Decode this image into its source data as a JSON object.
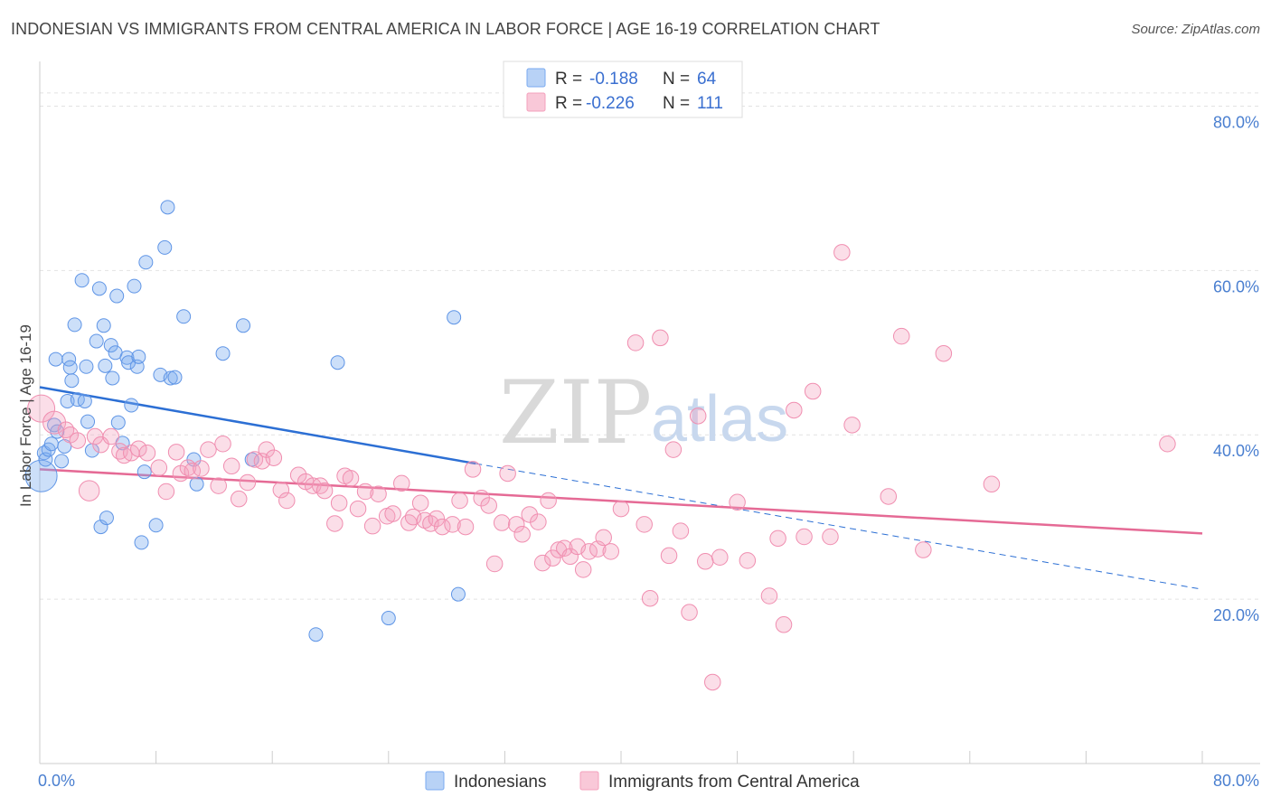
{
  "header": {
    "title": "INDONESIAN VS IMMIGRANTS FROM CENTRAL AMERICA IN LABOR FORCE | AGE 16-19 CORRELATION CHART",
    "source": "Source: ZipAtlas.com"
  },
  "watermark": {
    "zip": "ZIP",
    "atlas": "atlas"
  },
  "chart_data": {
    "type": "scatter",
    "title": "INDONESIAN VS IMMIGRANTS FROM CENTRAL AMERICA IN LABOR FORCE | AGE 16-19 CORRELATION CHART",
    "ylabel": "In Labor Force | Age 16-19",
    "xlabel": "",
    "xlim": [
      0,
      80
    ],
    "ylim": [
      0,
      85
    ],
    "x_tick_labels": [
      "0.0%",
      "80.0%"
    ],
    "y_ticks": [
      20,
      40,
      60,
      80
    ],
    "y_tick_labels": [
      "20.0%",
      "40.0%",
      "60.0%",
      "80.0%"
    ],
    "grid": true,
    "legend_position": "top-center",
    "colors": {
      "indonesians": "#7aaaf0",
      "central_america": "#f4a0bc",
      "indonesians_line": "#2c6fd4",
      "central_america_line": "#e56a95"
    },
    "stats": [
      {
        "r_label": "R =",
        "r": "-0.188",
        "n_label": "N =",
        "n": "64"
      },
      {
        "r_label": "R =",
        "r": "-0.226",
        "n_label": "N =",
        "n": "111"
      }
    ],
    "series": [
      {
        "name": "Indonesians",
        "trend": {
          "x": [
            0,
            30
          ],
          "y": [
            45.8,
            36.5
          ],
          "dashed_to": {
            "x": 80,
            "y": 21.2
          }
        },
        "points": [
          [
            0.1,
            35,
            14
          ],
          [
            0.3,
            37.8,
            6
          ],
          [
            0.4,
            37,
            6
          ],
          [
            0.6,
            38.2,
            6
          ],
          [
            0.8,
            38.9,
            6
          ],
          [
            1.0,
            41.2,
            6
          ],
          [
            1.1,
            49.2,
            6
          ],
          [
            1.2,
            40.4,
            6
          ],
          [
            1.5,
            36.8,
            6
          ],
          [
            1.7,
            38.6,
            6
          ],
          [
            1.9,
            44.1,
            6
          ],
          [
            2.0,
            49.2,
            6
          ],
          [
            2.1,
            48.2,
            6
          ],
          [
            2.2,
            46.6,
            6
          ],
          [
            2.4,
            53.4,
            6
          ],
          [
            2.6,
            44.3,
            6
          ],
          [
            2.9,
            58.8,
            6
          ],
          [
            3.1,
            44.1,
            6
          ],
          [
            3.2,
            48.3,
            6
          ],
          [
            3.3,
            41.6,
            6
          ],
          [
            3.6,
            38.1,
            6
          ],
          [
            3.9,
            51.4,
            6
          ],
          [
            4.1,
            57.8,
            6
          ],
          [
            4.2,
            28.8,
            6
          ],
          [
            4.5,
            48.4,
            6
          ],
          [
            4.4,
            53.3,
            6
          ],
          [
            4.6,
            29.9,
            6
          ],
          [
            4.9,
            50.9,
            6
          ],
          [
            5.0,
            46.9,
            6
          ],
          [
            5.2,
            50.0,
            6
          ],
          [
            5.3,
            56.9,
            6
          ],
          [
            5.4,
            41.5,
            6
          ],
          [
            5.7,
            39,
            6
          ],
          [
            6.0,
            49.4,
            6
          ],
          [
            6.1,
            48.8,
            6
          ],
          [
            6.3,
            43.6,
            6
          ],
          [
            6.5,
            58.1,
            6
          ],
          [
            6.7,
            48.3,
            6
          ],
          [
            6.8,
            49.5,
            6
          ],
          [
            7.0,
            26.9,
            6
          ],
          [
            7.2,
            35.5,
            6
          ],
          [
            7.3,
            61.0,
            6
          ],
          [
            8.0,
            29.0,
            6
          ],
          [
            8.3,
            47.3,
            6
          ],
          [
            8.6,
            62.8,
            6
          ],
          [
            8.8,
            67.7,
            6
          ],
          [
            9.0,
            46.9,
            6
          ],
          [
            9.3,
            47.0,
            6
          ],
          [
            9.9,
            54.4,
            6
          ],
          [
            10.6,
            37.0,
            6
          ],
          [
            10.8,
            34.0,
            6
          ],
          [
            12.6,
            49.9,
            6
          ],
          [
            14.0,
            53.3,
            6
          ],
          [
            14.6,
            37.0,
            6
          ],
          [
            19.0,
            15.7,
            6
          ],
          [
            20.5,
            48.8,
            6
          ],
          [
            24.0,
            17.7,
            6
          ],
          [
            28.5,
            54.3,
            6
          ],
          [
            28.8,
            20.6,
            6
          ]
        ]
      },
      {
        "name": "Immigrants from Central America",
        "trend": {
          "x": [
            0,
            80
          ],
          "y": [
            35.8,
            28.0
          ]
        },
        "points": [
          [
            0.1,
            43.2,
            12
          ],
          [
            1.0,
            41.5,
            10
          ],
          [
            1.8,
            40.6,
            7
          ],
          [
            2.1,
            40,
            7
          ],
          [
            2.6,
            39.3,
            7
          ],
          [
            3.4,
            33.2,
            9
          ],
          [
            3.8,
            39.8,
            7
          ],
          [
            4.2,
            38.8,
            7
          ],
          [
            4.9,
            39.8,
            7
          ],
          [
            5.5,
            38.0,
            7
          ],
          [
            5.8,
            37.5,
            7
          ],
          [
            6.3,
            37.8,
            7
          ],
          [
            6.8,
            38.3,
            7
          ],
          [
            7.4,
            37.8,
            7
          ],
          [
            8.2,
            36.0,
            7
          ],
          [
            8.7,
            33.1,
            7
          ],
          [
            9.4,
            37.9,
            7
          ],
          [
            9.7,
            35.3,
            7
          ],
          [
            10.2,
            36.0,
            7
          ],
          [
            10.5,
            35.6,
            7
          ],
          [
            11.1,
            35.9,
            7
          ],
          [
            11.6,
            38.2,
            7
          ],
          [
            12.3,
            33.8,
            7
          ],
          [
            12.6,
            38.9,
            7
          ],
          [
            13.2,
            36.2,
            7
          ],
          [
            13.7,
            32.2,
            7
          ],
          [
            14.3,
            34.2,
            7
          ],
          [
            14.8,
            37.0,
            7
          ],
          [
            15.3,
            36.8,
            7
          ],
          [
            15.6,
            38.2,
            7
          ],
          [
            16.1,
            37.2,
            7
          ],
          [
            16.6,
            33.3,
            7
          ],
          [
            17.0,
            32.0,
            7
          ],
          [
            17.8,
            35.1,
            7
          ],
          [
            18.3,
            34.3,
            7
          ],
          [
            18.8,
            33.8,
            7
          ],
          [
            19.3,
            33.8,
            7
          ],
          [
            19.6,
            33.2,
            7
          ],
          [
            20.3,
            29.2,
            7
          ],
          [
            20.6,
            31.7,
            7
          ],
          [
            21.0,
            35.0,
            7
          ],
          [
            21.4,
            34.7,
            7
          ],
          [
            21.9,
            31.0,
            7
          ],
          [
            22.4,
            33.1,
            7
          ],
          [
            22.9,
            28.9,
            7
          ],
          [
            23.3,
            32.8,
            7
          ],
          [
            23.9,
            30.1,
            7
          ],
          [
            24.3,
            30.4,
            7
          ],
          [
            24.9,
            34.1,
            7
          ],
          [
            25.4,
            29.3,
            7
          ],
          [
            25.7,
            30.0,
            7
          ],
          [
            26.2,
            31.7,
            7
          ],
          [
            26.5,
            29.6,
            7
          ],
          [
            26.9,
            29.2,
            7
          ],
          [
            27.3,
            29.8,
            7
          ],
          [
            27.7,
            28.8,
            7
          ],
          [
            28.4,
            29.1,
            7
          ],
          [
            28.9,
            32.0,
            7
          ],
          [
            29.3,
            28.8,
            7
          ],
          [
            29.8,
            35.8,
            7
          ],
          [
            30.4,
            32.3,
            7
          ],
          [
            30.9,
            31.4,
            7
          ],
          [
            31.3,
            24.3,
            7
          ],
          [
            31.8,
            29.3,
            7
          ],
          [
            32.2,
            35.3,
            7
          ],
          [
            32.8,
            29.1,
            7
          ],
          [
            33.2,
            27.9,
            7
          ],
          [
            33.7,
            30.3,
            7
          ],
          [
            34.3,
            29.4,
            7
          ],
          [
            34.6,
            24.4,
            7
          ],
          [
            35.0,
            32.0,
            7
          ],
          [
            35.3,
            25.0,
            7
          ],
          [
            35.7,
            26.0,
            7
          ],
          [
            36.1,
            26.2,
            7
          ],
          [
            36.5,
            25.2,
            7
          ],
          [
            37.0,
            26.4,
            7
          ],
          [
            37.4,
            23.6,
            7
          ],
          [
            37.8,
            25.8,
            7
          ],
          [
            38.4,
            26.1,
            7
          ],
          [
            38.8,
            27.5,
            7
          ],
          [
            39.3,
            25.8,
            7
          ],
          [
            40.0,
            31.0,
            7
          ],
          [
            41.0,
            51.2,
            7
          ],
          [
            41.6,
            29.1,
            7
          ],
          [
            42.0,
            20.1,
            7
          ],
          [
            42.7,
            51.8,
            7
          ],
          [
            43.3,
            25.3,
            7
          ],
          [
            43.6,
            38.2,
            7
          ],
          [
            44.1,
            28.3,
            7
          ],
          [
            44.7,
            18.4,
            7
          ],
          [
            45.3,
            42.3,
            7
          ],
          [
            45.8,
            24.6,
            7
          ],
          [
            46.3,
            9.9,
            7
          ],
          [
            46.8,
            25.1,
            7
          ],
          [
            48.0,
            31.8,
            7
          ],
          [
            48.7,
            24.7,
            7
          ],
          [
            50.2,
            20.4,
            7
          ],
          [
            50.8,
            27.4,
            7
          ],
          [
            51.2,
            16.9,
            7
          ],
          [
            51.9,
            43.0,
            7
          ],
          [
            52.6,
            27.6,
            7
          ],
          [
            53.2,
            45.3,
            7
          ],
          [
            54.4,
            27.6,
            7
          ],
          [
            55.2,
            62.2,
            7
          ],
          [
            55.9,
            41.2,
            7
          ],
          [
            58.4,
            32.5,
            7
          ],
          [
            59.3,
            52.0,
            7
          ],
          [
            60.8,
            26.0,
            7
          ],
          [
            62.2,
            49.9,
            7
          ],
          [
            65.5,
            34.0,
            7
          ],
          [
            77.6,
            38.9,
            7
          ]
        ]
      }
    ]
  },
  "legend": {
    "items": [
      "Indonesians",
      "Immigrants from Central America"
    ]
  }
}
